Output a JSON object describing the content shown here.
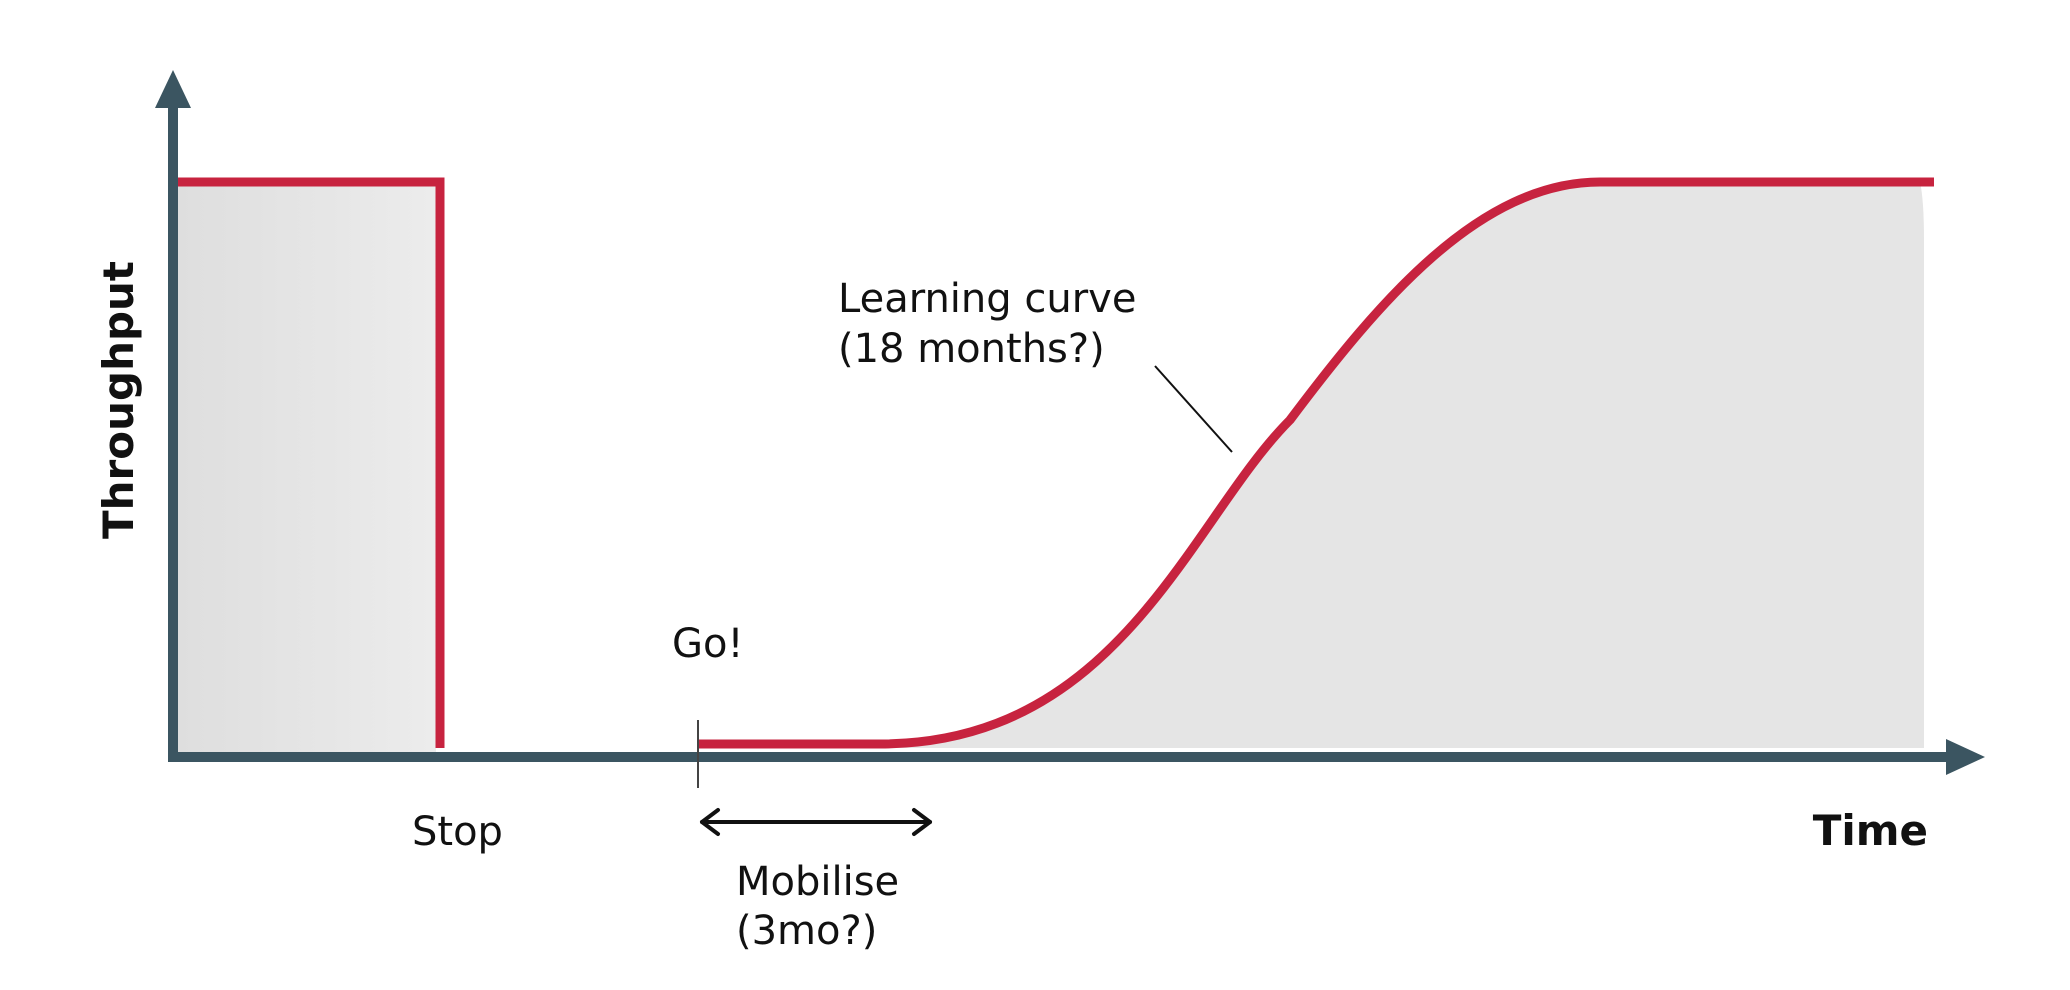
{
  "y_axis_label": "Throughput",
  "x_axis_label": "Time",
  "stop_label": "Stop",
  "go_label": "Go!",
  "mobilise_label": {
    "line1": "Mobilise",
    "line2": "(3mo?)"
  },
  "learning_curve_label": {
    "line1": "Learning curve",
    "line2": "(18 months?)"
  },
  "colors": {
    "axis": "#3b5561",
    "curve": "#c7233f",
    "fill": "#e5e5e5",
    "text": "#111111"
  }
}
